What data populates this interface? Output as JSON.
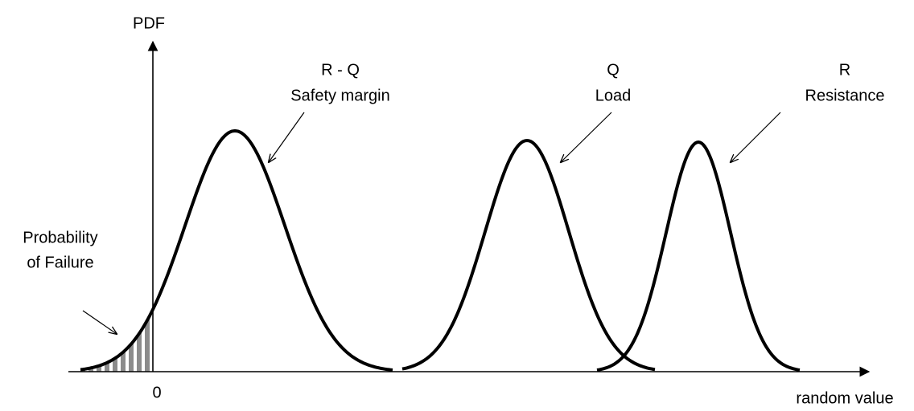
{
  "axes": {
    "y_label": "PDF",
    "x_label": "random value",
    "origin_label": "0"
  },
  "curves": [
    {
      "symbol": "R - Q",
      "name": "Safety margin"
    },
    {
      "symbol": "Q",
      "name": "Load"
    },
    {
      "symbol": "R",
      "name": "Resistance"
    }
  ],
  "annotation": {
    "line1": "Probability",
    "line2": "of Failure"
  }
}
